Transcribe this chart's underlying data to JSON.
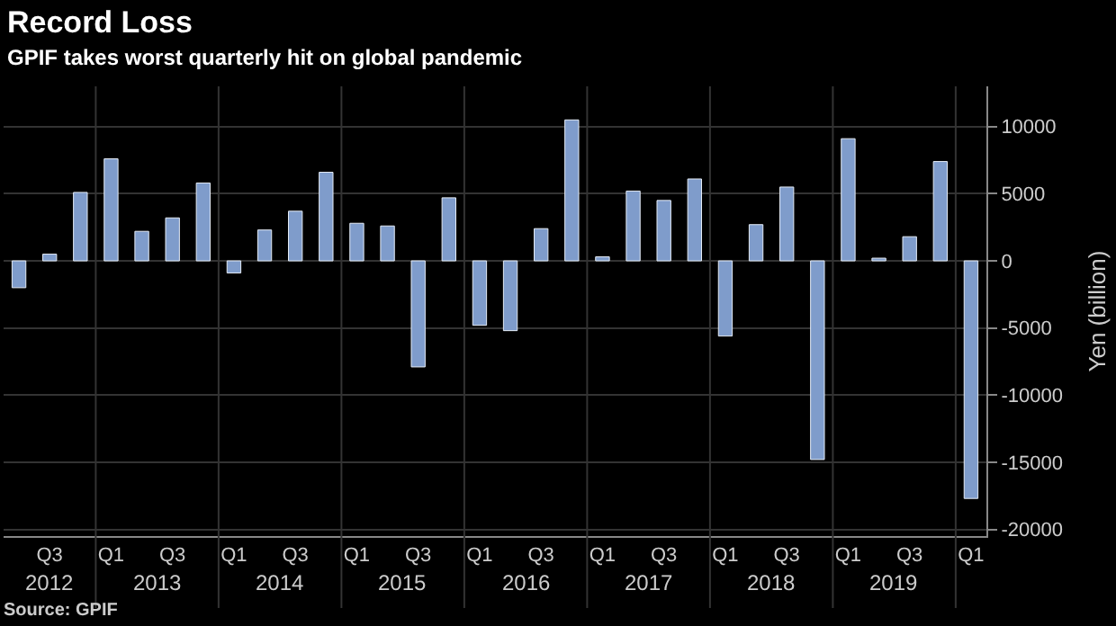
{
  "chart_data": {
    "type": "bar",
    "title": "Record Loss",
    "subtitle": "GPIF takes worst quarterly hit on global pandemic",
    "ylabel": "Yen (billion)",
    "categories": [
      null,
      "Q3",
      null,
      "Q1",
      null,
      "Q3",
      null,
      "Q1",
      null,
      "Q3",
      null,
      "Q1",
      null,
      "Q3",
      null,
      "Q1",
      null,
      "Q3",
      null,
      "Q1",
      null,
      "Q3",
      null,
      "Q1",
      null,
      "Q3",
      null,
      "Q1",
      null,
      "Q3",
      null,
      "Q1"
    ],
    "values": [
      -2000,
      500,
      5100,
      7600,
      2200,
      3200,
      5800,
      -900,
      2300,
      3700,
      6600,
      2800,
      2600,
      -7900,
      4700,
      -4800,
      -5200,
      2400,
      10500,
      300,
      5200,
      4500,
      6100,
      -5600,
      2700,
      5500,
      -14800,
      9100,
      200,
      1800,
      7400,
      -17700
    ],
    "color": "#7f9ccb",
    "ylim": [
      -20500,
      13000
    ],
    "yticks": [
      -20000,
      -15000,
      -10000,
      -5000,
      0,
      5000,
      10000
    ],
    "grid": true,
    "annotations": [
      "2012",
      "2013",
      "2014",
      "2015",
      "2016",
      "2017",
      "2018",
      "2019",
      "Source: GPIF"
    ]
  }
}
